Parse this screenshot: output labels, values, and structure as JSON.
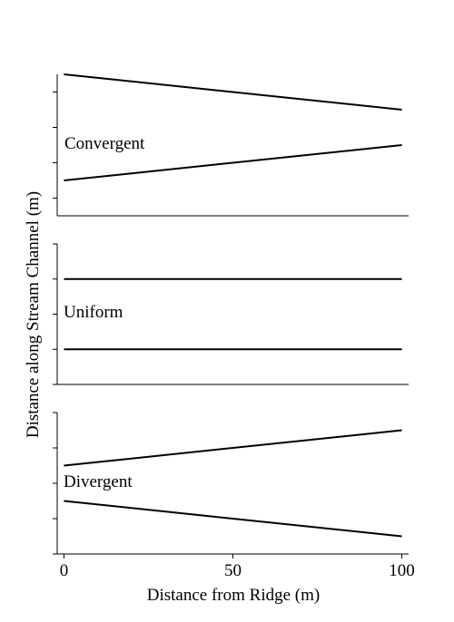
{
  "chart_data": [
    {
      "type": "line",
      "panel_label": "Convergent",
      "x": [
        0,
        100
      ],
      "series": [
        {
          "values": [
            3.5,
            2.5
          ]
        },
        {
          "values": [
            0.5,
            1.5
          ]
        }
      ],
      "ylim": [
        -0.5,
        3.5
      ],
      "xlim": [
        -2,
        102
      ]
    },
    {
      "type": "line",
      "panel_label": "Uniform",
      "x": [
        0,
        100
      ],
      "series": [
        {
          "values": [
            3,
            3
          ]
        },
        {
          "values": [
            1,
            1
          ]
        }
      ],
      "ylim": [
        0,
        4
      ],
      "xlim": [
        -2,
        102
      ]
    },
    {
      "type": "line",
      "panel_label": "Divergent",
      "x": [
        0,
        100
      ],
      "series": [
        {
          "values": [
            2.5,
            3.5
          ]
        },
        {
          "values": [
            1.5,
            0.5
          ]
        }
      ],
      "ylim": [
        0,
        4
      ],
      "xlim": [
        -2,
        102
      ]
    }
  ],
  "axes": {
    "xlabel": "Distance from Ridge (m)",
    "ylabel": "Distance along Stream Channel (m)",
    "xticks": [
      0,
      50,
      100
    ],
    "xtick_labels": [
      "0",
      "50",
      "100"
    ]
  }
}
